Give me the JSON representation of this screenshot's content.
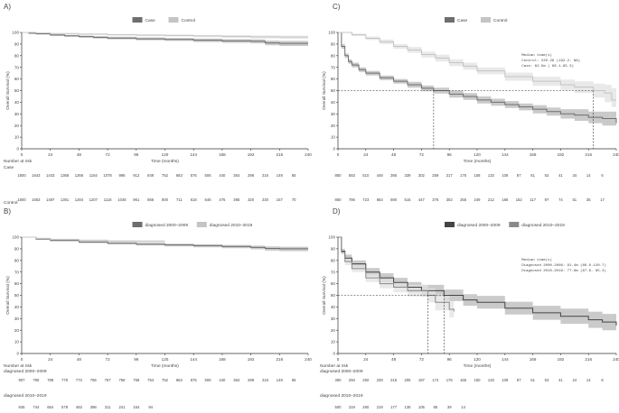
{
  "chart_data": [
    {
      "panel": "A)",
      "type": "line",
      "xlabel": "Time (months)",
      "ylabel": "Overall Survival (%)",
      "xlim": [
        0,
        240
      ],
      "ylim": [
        0,
        100
      ],
      "xticks": [
        0,
        24,
        48,
        72,
        96,
        120,
        144,
        168,
        192,
        216,
        240
      ],
      "yticks": [
        0,
        10,
        20,
        30,
        40,
        50,
        60,
        70,
        80,
        90,
        100
      ],
      "grid": false,
      "legend_position": "top-center",
      "series": [
        {
          "name": "Case",
          "color": "#6e6e6e",
          "band_color": "#b8b8b8",
          "x": [
            0,
            6,
            12,
            24,
            36,
            48,
            60,
            72,
            96,
            120,
            144,
            168,
            192,
            204,
            216,
            240
          ],
          "y": [
            100,
            99.3,
            98.8,
            97.8,
            97.1,
            96.4,
            95.8,
            95.2,
            94.5,
            94,
            93.3,
            92.7,
            92.4,
            91,
            90.6,
            90.6
          ],
          "lo": [
            100,
            98.8,
            98.2,
            97.1,
            96.3,
            95.5,
            94.8,
            94.1,
            93.3,
            92.7,
            91.8,
            91.1,
            90.6,
            89,
            88.4,
            88.4
          ],
          "hi": [
            100,
            99.7,
            99.3,
            98.5,
            97.9,
            97.3,
            96.8,
            96.3,
            95.7,
            95.3,
            94.7,
            94.3,
            94.1,
            93,
            92.7,
            92.7
          ]
        },
        {
          "name": "Control",
          "color": "#c4c4c4",
          "band_color": "#e2e2e2",
          "x": [
            0,
            12,
            24,
            48,
            72,
            96,
            120,
            144,
            168,
            192,
            216,
            240
          ],
          "y": [
            100,
            99.5,
            99,
            98.5,
            98.1,
            97.7,
            97.4,
            97,
            96.6,
            96.2,
            96,
            96
          ],
          "lo": [
            100,
            99.1,
            98.5,
            97.9,
            97.4,
            96.9,
            96.5,
            96,
            95.4,
            94.9,
            94.5,
            94.5
          ],
          "hi": [
            100,
            99.8,
            99.4,
            99,
            98.7,
            98.4,
            98.2,
            97.9,
            97.7,
            97.4,
            97.3,
            97.3
          ]
        }
      ],
      "risk_table": {
        "title": "Number at risk",
        "rows": [
          {
            "label": "Case",
            "values": [
              "1800",
              "1643",
              "1443",
              "1368",
              "1266",
              "1164",
              "1078",
              "998",
              "912",
              "849",
              "752",
              "663",
              "576",
              "506",
              "440",
              "364",
              "298",
              "216",
              "149",
              "65"
            ]
          },
          {
            "label": "Control",
            "values": [
              "1800",
              "1653",
              "1487",
              "1391",
              "1284",
              "1207",
              "1118",
              "1048",
              "961",
              "866",
              "800",
              "711",
              "618",
              "546",
              "475",
              "395",
              "320",
              "230",
              "157",
              "70"
            ]
          }
        ]
      }
    },
    {
      "panel": "B)",
      "type": "line",
      "xlabel": "Time (months)",
      "ylabel": "Overall Survival (%)",
      "xlim": [
        0,
        240
      ],
      "ylim": [
        0,
        100
      ],
      "xticks": [
        0,
        24,
        48,
        72,
        96,
        120,
        144,
        168,
        192,
        216,
        240
      ],
      "yticks": [
        0,
        10,
        20,
        30,
        40,
        50,
        60,
        70,
        80,
        90,
        100
      ],
      "grid": false,
      "legend_position": "top-center",
      "series": [
        {
          "name": "diagnosed 2000–2009",
          "color": "#6e6e6e",
          "band_color": "#b8b8b8",
          "x": [
            0,
            12,
            24,
            48,
            72,
            96,
            120,
            144,
            168,
            192,
            204,
            216,
            240
          ],
          "y": [
            100,
            98.4,
            97.2,
            95.8,
            94.8,
            94,
            93.3,
            92.7,
            92,
            91.2,
            90.3,
            90,
            90
          ],
          "lo": [
            100,
            97.8,
            96.4,
            94.9,
            93.8,
            92.9,
            92.1,
            91.3,
            90.5,
            89.5,
            88.4,
            88,
            88
          ],
          "hi": [
            100,
            98.9,
            97.9,
            96.6,
            95.7,
            95,
            94.4,
            93.9,
            93.3,
            92.7,
            92,
            91.8,
            91.8
          ]
        },
        {
          "name": "diagnosed 2010–2019",
          "color": "#c4c4c4",
          "band_color": "#e2e2e2",
          "x": [
            0,
            12,
            24,
            48,
            72,
            96,
            120
          ],
          "y": [
            100,
            98.9,
            98,
            97.1,
            96.4,
            96.2,
            96.2
          ],
          "lo": [
            100,
            98.2,
            97.1,
            95.9,
            94.9,
            94.4,
            94.4
          ],
          "hi": [
            100,
            99.4,
            98.7,
            98.1,
            97.6,
            97.5,
            97.5
          ]
        }
      ],
      "risk_table": {
        "title": "Number at risk",
        "rows": [
          {
            "label": "diagnosed 2000–2009",
            "values": [
              "907",
              "795",
              "789",
              "776",
              "773",
              "766",
              "767",
              "758",
              "758",
              "754",
              "752",
              "663",
              "576",
              "506",
              "440",
              "364",
              "298",
              "216",
              "149",
              "65"
            ]
          },
          {
            "label": "diagnosed 2010–2019",
            "values": [
              "845",
              "744",
              "654",
              "578",
              "463",
              "398",
              "311",
              "241",
              "154",
              "94"
            ]
          }
        ]
      }
    },
    {
      "panel": "C)",
      "type": "line",
      "xlabel": "Time (months)",
      "ylabel": "Overall Survival (%)",
      "xlim": [
        0,
        240
      ],
      "ylim": [
        0,
        100
      ],
      "xticks": [
        0,
        24,
        48,
        72,
        96,
        120,
        144,
        168,
        192,
        216,
        240
      ],
      "yticks": [
        0,
        10,
        20,
        30,
        40,
        50,
        60,
        70,
        80,
        90,
        100
      ],
      "grid": false,
      "legend_position": "top-center",
      "median_line": 50,
      "median_box": {
        "title": "Median time(s)",
        "lines": [
          "Control: 220.26 (192.2-  NA)",
          "Case:     82.5m ( 66.1-95.3)"
        ]
      },
      "median_drops": [
        82.5,
        220.26
      ],
      "series": [
        {
          "name": "Case",
          "color": "#6e6e6e",
          "band_color": "#b8b8b8",
          "x": [
            0,
            3,
            6,
            9,
            12,
            18,
            24,
            36,
            48,
            60,
            72,
            82.5,
            96,
            108,
            120,
            132,
            144,
            156,
            168,
            180,
            192,
            204,
            216,
            228,
            240
          ],
          "y": [
            100,
            88,
            80,
            75,
            72,
            68,
            65,
            61,
            58,
            55,
            52,
            50,
            47,
            45,
            42,
            40,
            38,
            36,
            34,
            32,
            30,
            29,
            27,
            26,
            22
          ],
          "lo": [
            100,
            86,
            78,
            73,
            70,
            66,
            63,
            59,
            56,
            52.5,
            49.5,
            47.5,
            44,
            42,
            39,
            37,
            35,
            33,
            30.5,
            28.5,
            26,
            24,
            22,
            20,
            15
          ],
          "hi": [
            100,
            90,
            82,
            77,
            74,
            70,
            67,
            63,
            60,
            57.5,
            54.5,
            52.5,
            50,
            48,
            45,
            43,
            41,
            39,
            37.5,
            35.5,
            34,
            34,
            32,
            32,
            29
          ]
        },
        {
          "name": "Control",
          "color": "#c4c4c4",
          "band_color": "#e2e2e2",
          "x": [
            0,
            12,
            24,
            36,
            48,
            60,
            72,
            84,
            96,
            108,
            120,
            144,
            168,
            192,
            204,
            220.26,
            230,
            236,
            240
          ],
          "y": [
            100,
            98,
            95,
            92,
            88,
            85,
            81,
            78,
            74,
            71,
            67,
            62,
            58,
            55,
            53,
            50,
            48,
            42,
            42
          ],
          "lo": [
            100,
            97,
            93.5,
            90,
            86,
            82.5,
            78.5,
            75,
            71,
            68,
            64,
            58.5,
            54,
            50.5,
            48,
            44,
            40,
            36,
            36
          ],
          "hi": [
            100,
            99,
            96.5,
            94,
            90,
            87.5,
            83.5,
            81,
            77,
            74,
            70,
            65.5,
            62,
            59.5,
            58,
            56,
            55,
            52,
            52
          ]
        }
      ],
      "risk_table": {
        "title": "",
        "rows": [
          {
            "label": "",
            "values": [
              "860",
              "583",
              "510",
              "448",
              "395",
              "339",
              "302",
              "259",
              "217",
              "175",
              "158",
              "133",
              "108",
              "87",
              "61",
              "53",
              "41",
              "34",
              "14",
              "6"
            ]
          },
          {
            "label": "Control",
            "values": [
              "860",
              "786",
              "723",
              "663",
              "590",
              "515",
              "447",
              "376",
              "302",
              "255",
              "249",
              "212",
              "186",
              "152",
              "117",
              "97",
              "74",
              "51",
              "35",
              "17"
            ]
          }
        ]
      }
    },
    {
      "panel": "D)",
      "type": "line",
      "xlabel": "Time (months)",
      "ylabel": "Overall Survival (%)",
      "xlim": [
        0,
        240
      ],
      "ylim": [
        0,
        100
      ],
      "xticks": [
        0,
        24,
        48,
        72,
        96,
        120,
        144,
        168,
        192,
        216,
        240
      ],
      "yticks": [
        0,
        10,
        20,
        30,
        40,
        50,
        60,
        70,
        80,
        90,
        100
      ],
      "grid": false,
      "legend_position": "top-center",
      "median_line": 50,
      "median_box": {
        "title": "Median time(s)",
        "lines": [
          "Diagnosed 2000-2009: 91.4m (66.0-120.7)",
          "Diagnosed 2010-2019: 77.6m (67.6- 95.3)"
        ]
      },
      "median_drops": [
        77.6,
        91.4
      ],
      "series": [
        {
          "name": "diagnosed 2000–2009",
          "color": "#444444",
          "band_color": "#b8b8b8",
          "x": [
            0,
            3,
            6,
            12,
            24,
            36,
            48,
            60,
            72,
            91.4,
            108,
            120,
            144,
            168,
            192,
            216,
            228,
            240
          ],
          "y": [
            100,
            88,
            82,
            77,
            70,
            65,
            61,
            57,
            54,
            50,
            46,
            44,
            39,
            35,
            32,
            29,
            27,
            24
          ],
          "lo": [
            100,
            86,
            79,
            74,
            66.5,
            61,
            57,
            52.5,
            49,
            45,
            41,
            38.5,
            33.5,
            29,
            25.5,
            22,
            20,
            15
          ],
          "hi": [
            100,
            90,
            85,
            80,
            73.5,
            69,
            65,
            61.5,
            59,
            55,
            51,
            49.5,
            44.5,
            41,
            38.5,
            36,
            34,
            33
          ]
        },
        {
          "name": "diagnosed 2010–2019",
          "color": "#8a8a8a",
          "band_color": "#e2e2e2",
          "x": [
            0,
            3,
            6,
            12,
            24,
            36,
            48,
            60,
            77.6,
            84,
            96,
            100
          ],
          "y": [
            100,
            87,
            79,
            73,
            65,
            60,
            57,
            54,
            50,
            44,
            38,
            36
          ],
          "lo": [
            100,
            85,
            76,
            70,
            61.5,
            56,
            52.5,
            49,
            44,
            37,
            31,
            28
          ],
          "hi": [
            100,
            89,
            82,
            76,
            68.5,
            64,
            61.5,
            59,
            56,
            51,
            45,
            44
          ]
        }
      ],
      "risk_table": {
        "title": "Number at risk",
        "rows": [
          {
            "label": "diagnosed 2000–2009",
            "values": [
              "360",
              "294",
              "250",
              "239",
              "216",
              "205",
              "187",
              "174",
              "176",
              "165",
              "150",
              "133",
              "108",
              "87",
              "61",
              "53",
              "41",
              "24",
              "14",
              "6"
            ]
          },
          {
            "label": "diagnosed 2010–2019",
            "values": [
              "500",
              "319",
              "260",
              "219",
              "177",
              "135",
              "105",
              "85",
              "39",
              "14"
            ]
          }
        ]
      }
    }
  ]
}
